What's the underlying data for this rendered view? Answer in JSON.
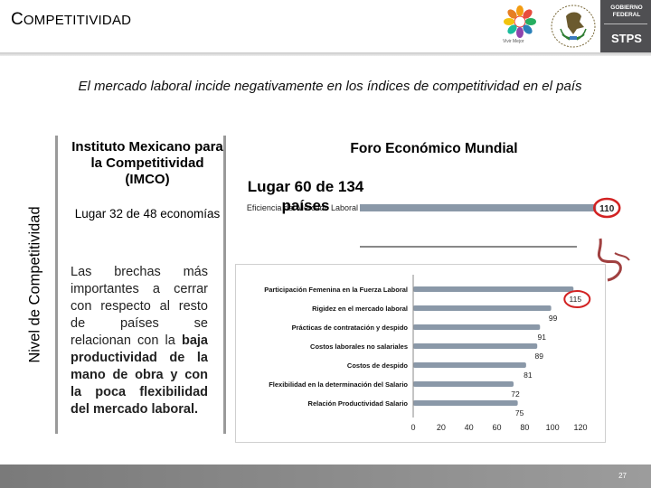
{
  "header": {
    "title_first": "C",
    "title_rest": "OMPETITIVIDAD",
    "logo_caption": "Vivir Mejor",
    "gov_label_1": "GOBIERNO",
    "gov_label_2": "FEDERAL",
    "agency": "STPS"
  },
  "subtitle": "El mercado laboral incide negativamente en los índices de competitividad en el país",
  "vertical_label": "Nivel de Competitividad",
  "left": {
    "imco_title": "Instituto Mexicano para la Competitividad (IMCO)",
    "imco_place": "Lugar 32 de 48 economías",
    "gap_text": "Las brechas más importantes a cerrar con respecto al resto de países se relacionan con la",
    "gap_text_bold": "baja productividad de la mano de obra y con la poca flexibilidad del mercado laboral."
  },
  "right": {
    "wef_title": "Foro Económico Mundial",
    "wef_place": "Lugar  60 de 134 países"
  },
  "chart_data": [
    {
      "type": "bar",
      "categories": [
        "Eficiencia del Mercado Laboral"
      ],
      "values": [
        110
      ],
      "xlim": [
        0,
        120
      ],
      "highlight_color": "#d22222"
    },
    {
      "type": "bar",
      "orientation": "horizontal",
      "categories": [
        "Participación Femenina en la Fuerza Laboral",
        "Rigidez en el mercado laboral",
        "Prácticas de contratación y despido",
        "Costos laborales no salariales",
        "Costos de despido",
        "Flexibilidad en la determinación del Salario",
        "Relación Productividad Salario"
      ],
      "values": [
        115,
        99,
        91,
        89,
        81,
        72,
        75
      ],
      "value_labels": [
        "115",
        "99",
        "91",
        "89",
        "81",
        "72",
        "75"
      ],
      "xlim": [
        0,
        120
      ],
      "xticks": [
        0,
        20,
        40,
        60,
        80,
        100,
        120
      ],
      "grid": false,
      "highlight_index": 0,
      "bar_color": "#8a98a8",
      "highlight_color": "#d22222"
    }
  ],
  "footer": {
    "page": "27"
  }
}
